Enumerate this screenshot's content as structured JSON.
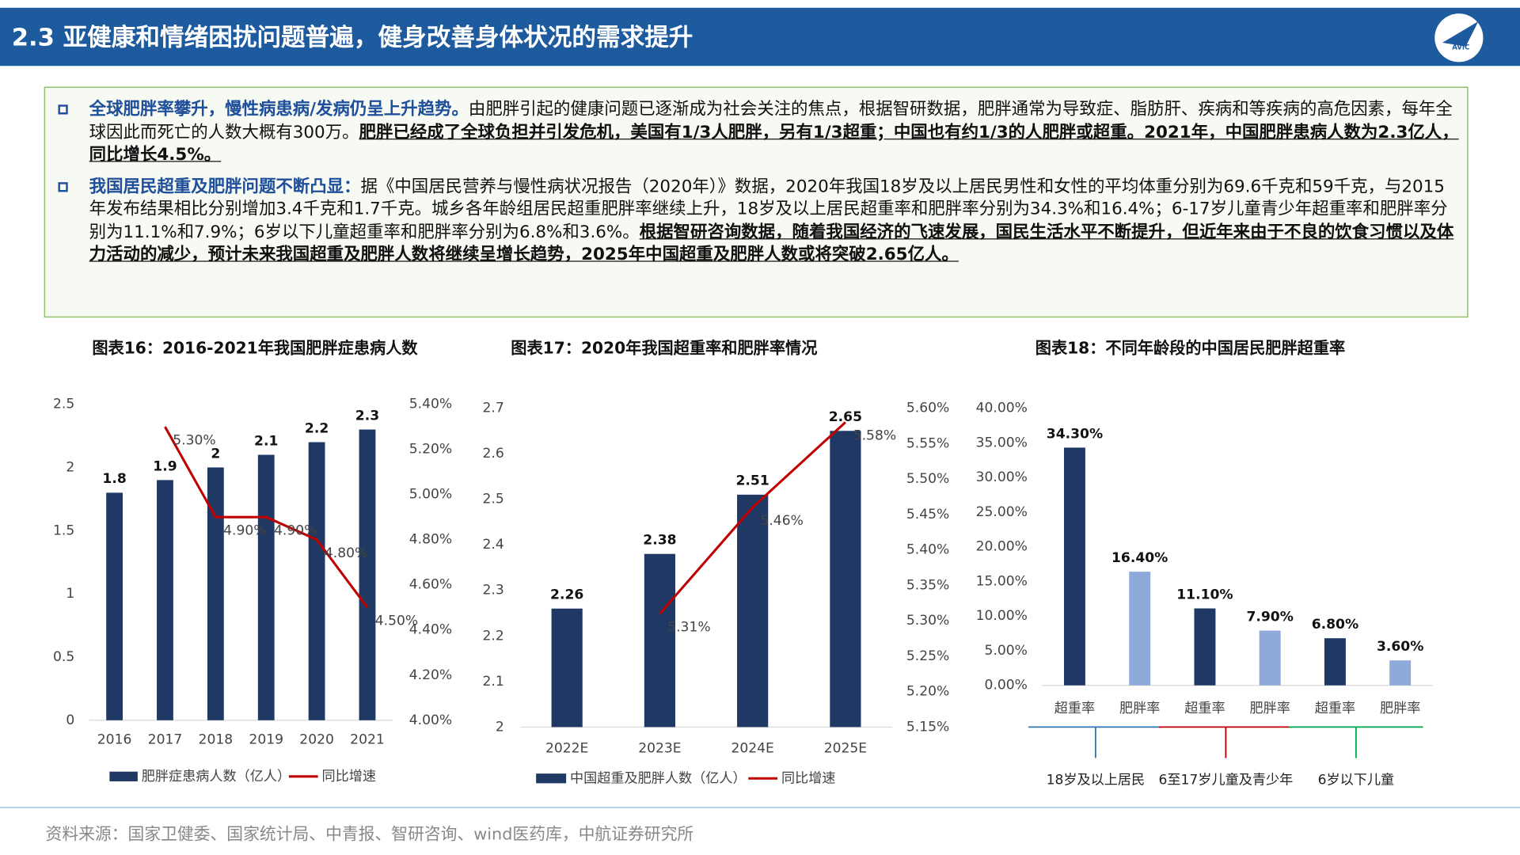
{
  "header": {
    "title": "2.3 亚健康和情绪困扰问题普遍，健身改善身体状况的需求提升",
    "logo_text": "AVIC"
  },
  "bullets": [
    {
      "lead": "全球肥胖率攀升，慢性病患病/发病仍呈上升趋势。",
      "body": "由肥胖引起的健康问题已逐渐成为社会关注的焦点，根据智研数据，肥胖通常为导致症、脂肪肝、疾病和等疾病的高危因素，每年全球因此而死亡的人数大概有300万。",
      "emphasis": "肥胖已经成了全球负担并引发危机，美国有1/3人肥胖，另有1/3超重；中国也有约1/3的人肥胖或超重。2021年，中国肥胖患病人数为2.3亿人，同比增长4.5%。"
    },
    {
      "lead": "我国居民超重及肥胖问题不断凸显：",
      "body": "据《中国居民营养与慢性病状况报告（2020年）》数据，2020年我国18岁及以上居民男性和女性的平均体重分别为69.6千克和59千克，与2015年发布结果相比分别增加3.4千克和1.7千克。城乡各年龄组居民超重肥胖率继续上升，18岁及以上居民超重率和肥胖率分别为34.3%和16.4%；6-17岁儿童青少年超重率和肥胖率分别为11.1%和7.9%；6岁以下儿童超重率和肥胖率分别为6.8%和3.6%。",
      "emphasis": "根据智研咨询数据，随着我国经济的飞速发展，国民生活水平不断提升，但近年来由于不良的饮食习惯以及体力活动的减少，预计未来我国超重及肥胖人数将继续呈增长趋势，2025年中国超重及肥胖人数或将突破2.65亿人。"
    }
  ],
  "charts": [
    {
      "type": "bar_line",
      "title": "图表16：2016-2021年我国肥胖症患病人数",
      "categories": [
        "2016",
        "2017",
        "2018",
        "2019",
        "2020",
        "2021"
      ],
      "series": [
        {
          "name": "肥胖症患病人数（亿人）",
          "color": "#1f3864",
          "values": [
            1.8,
            1.9,
            2,
            2.1,
            2.2,
            2.3
          ]
        },
        {
          "name": "同比增速",
          "color": "#c00000",
          "axis": "y2",
          "values": [
            null,
            5.3,
            4.9,
            4.9,
            4.8,
            4.5
          ],
          "value_labels": [
            null,
            "5.30%",
            "4.90%",
            "4.90%",
            "4.80%",
            "4.50%"
          ]
        }
      ],
      "ylim": [
        0,
        2.5
      ],
      "yticks": [
        0,
        0.5,
        1,
        1.5,
        2,
        2.5
      ],
      "y2lim": [
        4.0,
        5.4
      ],
      "y2ticks": [
        {
          "value": 4.0,
          "label": "4.00%"
        },
        {
          "value": 4.2,
          "label": "4.20%"
        },
        {
          "value": 4.4,
          "label": "4.40%"
        },
        {
          "value": 4.6,
          "label": "4.60%"
        },
        {
          "value": 4.8,
          "label": "4.80%"
        },
        {
          "value": 5.0,
          "label": "5.00%"
        },
        {
          "value": 5.2,
          "label": "5.20%"
        },
        {
          "value": 5.4,
          "label": "5.40%"
        }
      ]
    },
    {
      "type": "bar_line",
      "title": "图表17：2020年我国超重率和肥胖率情况",
      "categories": [
        "2022E",
        "2023E",
        "2024E",
        "2025E"
      ],
      "series": [
        {
          "name": "中国超重及肥胖人数（亿人）",
          "color": "#1f3864",
          "values": [
            2.26,
            2.38,
            2.51,
            2.65
          ]
        },
        {
          "name": "同比增速",
          "color": "#c00000",
          "axis": "y2",
          "values": [
            null,
            5.31,
            5.46,
            5.58
          ],
          "value_labels": [
            null,
            "5.31%",
            "5.46%",
            "5.58%"
          ]
        }
      ],
      "ylim": [
        2,
        2.7
      ],
      "yticks": [
        2,
        2.1,
        2.2,
        2.3,
        2.4,
        2.5,
        2.6,
        2.7
      ],
      "y2lim": [
        5.15,
        5.6
      ],
      "y2ticks": [
        {
          "value": 5.15,
          "label": "5.15%"
        },
        {
          "value": 5.2,
          "label": "5.20%"
        },
        {
          "value": 5.25,
          "label": "5.25%"
        },
        {
          "value": 5.3,
          "label": "5.30%"
        },
        {
          "value": 5.35,
          "label": "5.35%"
        },
        {
          "value": 5.4,
          "label": "5.40%"
        },
        {
          "value": 5.45,
          "label": "5.45%"
        },
        {
          "value": 5.5,
          "label": "5.50%"
        },
        {
          "value": 5.55,
          "label": "5.55%"
        },
        {
          "value": 5.6,
          "label": "5.60%"
        }
      ]
    },
    {
      "type": "bar",
      "title": "图表18：不同年龄段的中国居民肥胖超重率",
      "categories": [
        "超重率",
        "肥胖率",
        "超重率",
        "肥胖率",
        "超重率",
        "肥胖率"
      ],
      "values": [
        34.3,
        16.4,
        11.1,
        7.9,
        6.8,
        3.6
      ],
      "value_labels": [
        "34.30%",
        "16.40%",
        "11.10%",
        "7.90%",
        "6.80%",
        "3.60%"
      ],
      "colors": [
        "#1f3864",
        "#8eaadb",
        "#1f3864",
        "#8eaadb",
        "#1f3864",
        "#8eaadb"
      ],
      "ylim": [
        0,
        40
      ],
      "yticks": [
        {
          "value": 0,
          "label": "0.00%"
        },
        {
          "value": 5,
          "label": "5.00%"
        },
        {
          "value": 10,
          "label": "10.00%"
        },
        {
          "value": 15,
          "label": "15.00%"
        },
        {
          "value": 20,
          "label": "20.00%"
        },
        {
          "value": 25,
          "label": "25.00%"
        },
        {
          "value": 30,
          "label": "30.00%"
        },
        {
          "value": 35,
          "label": "35.00%"
        },
        {
          "value": 40,
          "label": "40.00%"
        }
      ],
      "groups": [
        {
          "label": "18岁及以上居民",
          "color": "#2e75b6"
        },
        {
          "label": "6至17岁儿童及青少年",
          "color": "#c00000"
        },
        {
          "label": "6岁以下儿童",
          "color": "#00a651"
        }
      ]
    }
  ],
  "source": "资料来源：国家卫健委、国家统计局、中青报、智研咨询、wind医药库，中航证券研究所"
}
